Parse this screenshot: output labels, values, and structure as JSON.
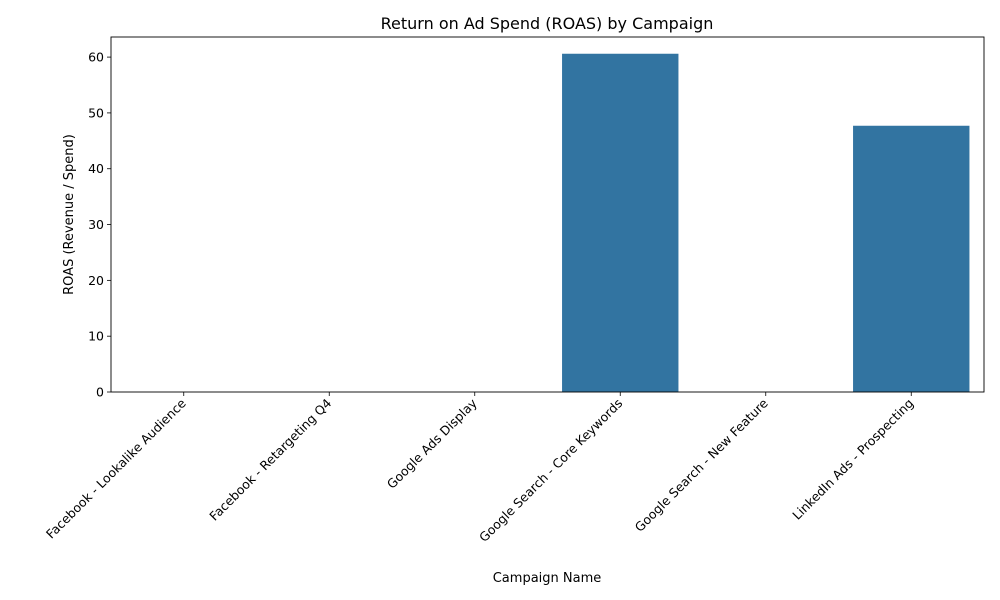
{
  "chart_data": {
    "type": "bar",
    "title": "Return on Ad Spend (ROAS) by Campaign",
    "xlabel": "Campaign Name",
    "ylabel": "ROAS (Revenue / Spend)",
    "categories": [
      "Facebook - Lookalike Audience",
      "Facebook - Retargeting Q4",
      "Google Ads Display",
      "Google Search - Core Keywords",
      "Google Search - New Feature",
      "LinkedIn Ads - Prospecting"
    ],
    "values": [
      0,
      0,
      0,
      60.6,
      0,
      47.7
    ],
    "ylim": [
      0,
      63.6
    ],
    "yticks": [
      0,
      10,
      20,
      30,
      40,
      50,
      60
    ],
    "bar_color": "#3274a1",
    "grid": false,
    "legend": "none"
  }
}
